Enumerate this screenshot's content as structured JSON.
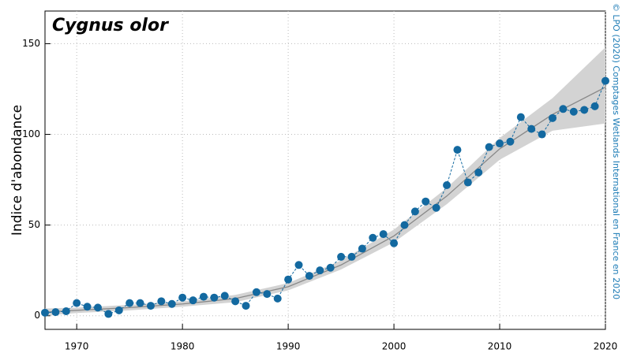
{
  "chart_data": {
    "type": "line",
    "title": "Cygnus olor",
    "y_label": "Indice d'abondance",
    "credit": "© LPO (2020) Comptages Wetlands International en France en 2020",
    "x": [
      1967,
      1968,
      1969,
      1970,
      1971,
      1972,
      1973,
      1974,
      1975,
      1976,
      1977,
      1978,
      1979,
      1980,
      1981,
      1982,
      1983,
      1984,
      1985,
      1986,
      1987,
      1988,
      1989,
      1990,
      1991,
      1992,
      1993,
      1994,
      1995,
      1996,
      1997,
      1998,
      1999,
      2000,
      2001,
      2002,
      2003,
      2004,
      2005,
      2006,
      2007,
      2008,
      2009,
      2010,
      2011,
      2012,
      2013,
      2014,
      2015,
      2016,
      2017,
      2018,
      2019,
      2020
    ],
    "series": [
      {
        "color": "#1369a0",
        "values": [
          1.7,
          2,
          2.5,
          7,
          5,
          4.5,
          1,
          3,
          7,
          7,
          5.5,
          8,
          6.5,
          10,
          8.5,
          10.5,
          10,
          11,
          8,
          5.5,
          13,
          12,
          9.5,
          20,
          28,
          22,
          25,
          26.5,
          32.5,
          32.5,
          37,
          43,
          45,
          40,
          50,
          57.5,
          63,
          59.5,
          72,
          91.5,
          73.5,
          79,
          93,
          95,
          96,
          109.5,
          103,
          100,
          109,
          114,
          112.5,
          113.5,
          115.5,
          129.5
        ]
      }
    ],
    "trend": {
      "color": "#888888",
      "band_color": "#d3d3d3",
      "x": [
        1967,
        1970,
        1975,
        1980,
        1985,
        1990,
        1995,
        2000,
        2005,
        2010,
        2015,
        2020
      ],
      "values": [
        2,
        3,
        4.5,
        6.5,
        9.5,
        16,
        28,
        44,
        66,
        92,
        111,
        126
      ],
      "lower": [
        0,
        1.5,
        3,
        5,
        7.5,
        14,
        25.5,
        40.5,
        61.5,
        86,
        102,
        106
      ],
      "upper": [
        4,
        4.5,
        6,
        8,
        11.5,
        18,
        30.5,
        47.5,
        70.5,
        98,
        120,
        148
      ]
    },
    "xlim": [
      1967,
      2020
    ],
    "ylim": [
      -7.5,
      168
    ],
    "xticks": [
      1970,
      1980,
      1990,
      2000,
      2010,
      2020
    ],
    "yticks": [
      0,
      50,
      100,
      150
    ],
    "grid": true
  }
}
